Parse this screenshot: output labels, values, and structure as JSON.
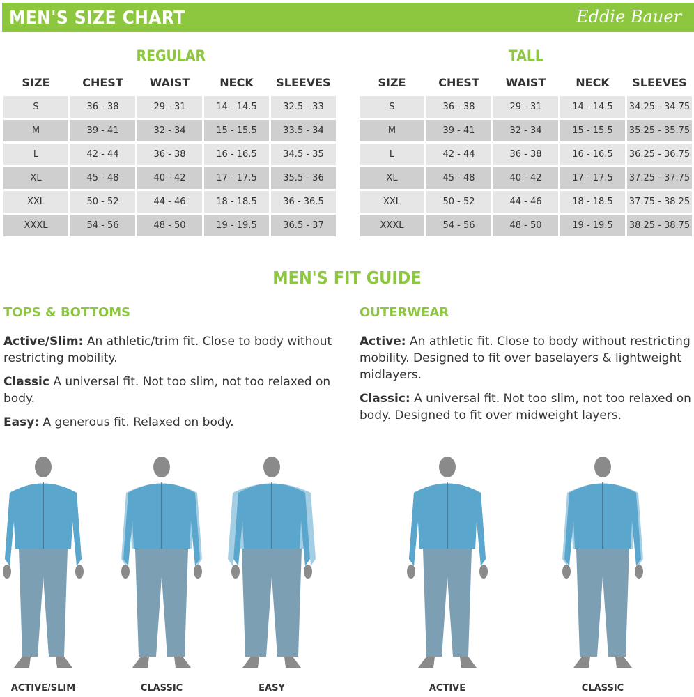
{
  "header": {
    "title": "MEN'S SIZE CHART",
    "logo": "Eddie Bauer"
  },
  "columns": [
    "SIZE",
    "CHEST",
    "WAIST",
    "NECK",
    "SLEEVES"
  ],
  "regular": {
    "title": "REGULAR",
    "rows": [
      [
        "S",
        "36 - 38",
        "29 - 31",
        "14 - 14.5",
        "32.5 - 33"
      ],
      [
        "M",
        "39 - 41",
        "32 - 34",
        "15 - 15.5",
        "33.5 - 34"
      ],
      [
        "L",
        "42 - 44",
        "36 - 38",
        "16 - 16.5",
        "34.5 - 35"
      ],
      [
        "XL",
        "45 - 48",
        "40 - 42",
        "17 - 17.5",
        "35.5 - 36"
      ],
      [
        "XXL",
        "50 - 52",
        "44 - 46",
        "18 - 18.5",
        "36 - 36.5"
      ],
      [
        "XXXL",
        "54 - 56",
        "48 - 50",
        "19 - 19.5",
        "36.5 - 37"
      ]
    ]
  },
  "tall": {
    "title": "TALL",
    "rows": [
      [
        "S",
        "36 - 38",
        "29 - 31",
        "14 - 14.5",
        "34.25 - 34.75"
      ],
      [
        "M",
        "39 - 41",
        "32 - 34",
        "15 - 15.5",
        "35.25 - 35.75"
      ],
      [
        "L",
        "42 - 44",
        "36 - 38",
        "16 - 16.5",
        "36.25 - 36.75"
      ],
      [
        "XL",
        "45 - 48",
        "40 - 42",
        "17 - 17.5",
        "37.25 - 37.75"
      ],
      [
        "XXL",
        "50 - 52",
        "44 - 46",
        "18 - 18.5",
        "37.75 - 38.25"
      ],
      [
        "XXXL",
        "54 - 56",
        "48 - 50",
        "19 - 19.5",
        "38.25 - 38.75"
      ]
    ]
  },
  "fit_guide": {
    "title": "MEN'S FIT GUIDE",
    "tops": {
      "title": "TOPS & BOTTOMS",
      "items": [
        {
          "term": "Active/Slim:",
          "desc": " An athletic/trim fit. Close to body without restricting mobility."
        },
        {
          "term": "Classic",
          "desc": " A universal fit. Not too slim, not too relaxed on body."
        },
        {
          "term": "Easy:",
          "desc": " A generous fit. Relaxed on body."
        }
      ]
    },
    "outer": {
      "title": "OUTERWEAR",
      "items": [
        {
          "term": "Active:",
          "desc": " An athletic fit. Close to body without restricting mobility. Designed to fit over baselayers & lightweight midlayers."
        },
        {
          "term": "Classic:",
          "desc": " A universal fit. Not too slim, not too relaxed on body. Designed to fit over midweight layers."
        }
      ]
    }
  },
  "figures": [
    "ACTIVE/SLIM",
    "CLASSIC",
    "EASY",
    "ACTIVE",
    "CLASSIC"
  ],
  "colors": {
    "brand_green": "#8dc63f",
    "jacket": "#5aa6cc",
    "pants": "#7d9fb3",
    "skin": "#8a8a8a"
  }
}
